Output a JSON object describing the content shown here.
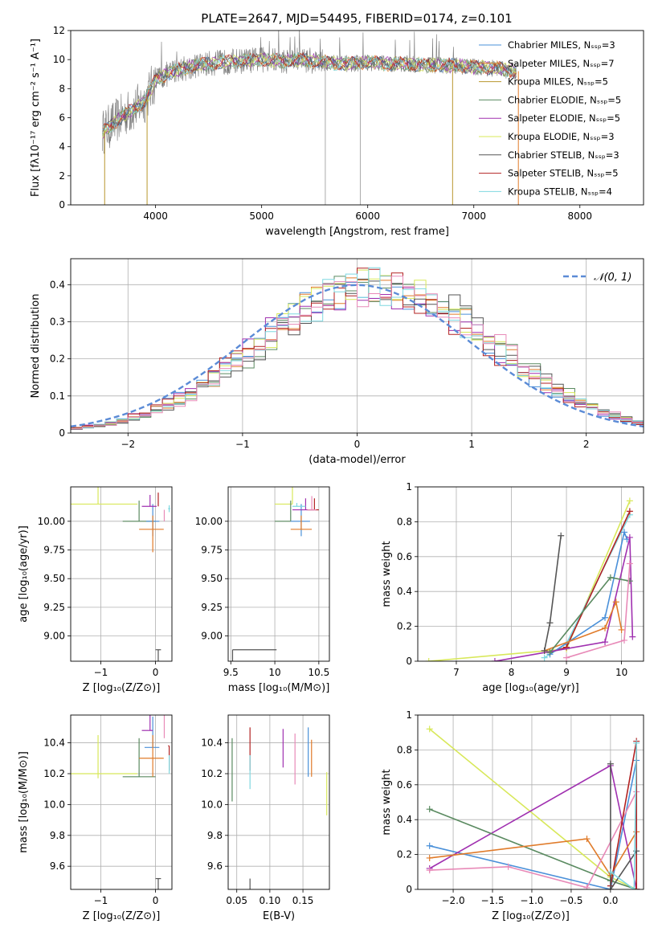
{
  "figure": {
    "title": "PLATE=2647, MJD=54495, FIBERID=0174, z=0.101"
  },
  "chart_data": [
    {
      "id": "spectrum",
      "type": "line",
      "xlabel": "wavelength [Angstrom, rest frame]",
      "ylabel": "Flux [fλ10⁻¹⁷ erg cm⁻² s⁻¹ A⁻¹]",
      "xlim": [
        3200,
        8600
      ],
      "ylim": [
        0,
        12
      ],
      "xticks": [
        4000,
        5000,
        6000,
        7000,
        8000
      ],
      "yticks": [
        0,
        2,
        4,
        6,
        8,
        10,
        12
      ],
      "grid": false,
      "legend_position": "top-right",
      "data_range": [
        3500,
        7400
      ],
      "series": [
        {
          "name": "Chabrier MILES, Nₛₛₚ=3",
          "color": "#4a90d9"
        },
        {
          "name": "Salpeter MILES, Nₛₛₚ=7",
          "color": "#e07b2a"
        },
        {
          "name": "Kroupa MILES, Nₛₛₚ=5",
          "color": "#b8962e"
        },
        {
          "name": "Chabrier ELODIE, Nₛₛₚ=5",
          "color": "#5a8a60"
        },
        {
          "name": "Salpeter ELODIE, Nₛₛₚ=5",
          "color": "#a030b0"
        },
        {
          "name": "Kroupa ELODIE, Nₛₛₚ=3",
          "color": "#d8e85a"
        },
        {
          "name": "Chabrier STELIB, Nₛₛₚ=3",
          "color": "#555555"
        },
        {
          "name": "Salpeter STELIB, Nₛₛₚ=5",
          "color": "#b22222"
        },
        {
          "name": "Kroupa STELIB, Nₛₛₚ=4",
          "color": "#7fd8e0"
        }
      ],
      "continuum": {
        "x": [
          3500,
          3600,
          3700,
          3800,
          3900,
          4000,
          4200,
          4400,
          4600,
          4800,
          5000,
          5200,
          5400,
          5600,
          5800,
          6000,
          6200,
          6400,
          6600,
          6800,
          7000,
          7200,
          7400
        ],
        "y": [
          5.0,
          5.6,
          6.2,
          6.6,
          7.2,
          8.6,
          9.3,
          9.6,
          9.8,
          9.9,
          10.0,
          9.9,
          10.0,
          9.8,
          9.7,
          9.8,
          9.7,
          9.7,
          9.6,
          9.6,
          9.5,
          9.4,
          9.2
        ]
      },
      "spikes": [
        {
          "x": 3520,
          "color": "#b8962e"
        },
        {
          "x": 3920,
          "color": "#b8962e"
        },
        {
          "x": 5600,
          "color": "#aaaaaa"
        },
        {
          "x": 5930,
          "color": "#aaaaaa"
        },
        {
          "x": 6800,
          "color": "#b8962e"
        },
        {
          "x": 7420,
          "color": "#e07b2a"
        }
      ]
    },
    {
      "id": "residuals",
      "type": "histogram",
      "xlabel": "(data-model)/error",
      "ylabel": "Normed distribution",
      "xlim": [
        -2.5,
        2.5
      ],
      "ylim": [
        0,
        0.47
      ],
      "xticks": [
        -2,
        -1,
        0,
        1,
        2
      ],
      "yticks": [
        0.0,
        0.1,
        0.2,
        0.3,
        0.4
      ],
      "grid": true,
      "legend_position": "top-right",
      "legend_label": "𝒩(0, 1)",
      "bin_width": 0.1,
      "reference_color": "#5b8bd6",
      "series_colors": [
        "#4a90d9",
        "#e07b2a",
        "#5a8a60",
        "#a030b0",
        "#d8e85a",
        "#555555",
        "#b22222",
        "#7fd8e0",
        "#e88ab8"
      ]
    },
    {
      "id": "age-vs-Z",
      "type": "errorbar",
      "xlabel": "Z [log₁₀(Z/Z⊙)]",
      "ylabel": "age  [log₁₀(age/yr)]",
      "xlim": [
        -1.55,
        0.3
      ],
      "ylim": [
        8.78,
        10.3
      ],
      "xticks": [
        -1,
        0
      ],
      "yticks": [
        9.0,
        9.25,
        9.5,
        9.75,
        10.0
      ],
      "ytick_labels": [
        "9.00",
        "9.25",
        "9.50",
        "9.75",
        "10.00"
      ],
      "grid": true,
      "points": [
        {
          "x": -1.05,
          "y": 10.15,
          "xerr": [
            1.05,
            0.72
          ],
          "yerr": [
            0.45,
            0.0
          ],
          "color": "#d8e85a"
        },
        {
          "x": -0.3,
          "y": 10.0,
          "xerr": [
            0.3,
            0.3
          ],
          "yerr": [
            0.18,
            0.0
          ],
          "color": "#5a8a60"
        },
        {
          "x": -0.05,
          "y": 10.0,
          "xerr": [
            0.12,
            0.12
          ],
          "yerr": [
            0.15,
            0.13
          ],
          "color": "#4a90d9"
        },
        {
          "x": -0.05,
          "y": 9.93,
          "xerr": [
            0.25,
            0.2
          ],
          "yerr": [
            0.12,
            0.2
          ],
          "color": "#e07b2a"
        },
        {
          "x": -0.1,
          "y": 10.13,
          "xerr": [
            0.15,
            0.12
          ],
          "yerr": [
            0.1,
            0.0
          ],
          "color": "#a030b0"
        },
        {
          "x": 0.05,
          "y": 10.13,
          "xerr": [
            0.0,
            0.0
          ],
          "yerr": [
            0.12,
            0.0
          ],
          "color": "#b22222"
        },
        {
          "x": 0.16,
          "y": 10.0,
          "xerr": [
            0.0,
            0.0
          ],
          "yerr": [
            0.1,
            0.0
          ],
          "color": "#e88ab8"
        },
        {
          "x": 0.25,
          "y": 10.11,
          "xerr": [
            0.02,
            0.02
          ],
          "yerr": [
            0.03,
            0.03
          ],
          "color": "#7fd8e0"
        },
        {
          "x": 0.05,
          "y": 8.88,
          "xerr": [
            0.05,
            0.05
          ],
          "yerr": [
            0.0,
            0.88
          ],
          "color": "#555555"
        }
      ]
    },
    {
      "id": "age-vs-mass",
      "type": "errorbar",
      "xlabel": "mass [log₁₀(M/M⊙)]",
      "ylabel": "",
      "xlim": [
        9.47,
        10.62
      ],
      "ylim": [
        8.78,
        10.3
      ],
      "xticks": [
        9.5,
        10.0,
        10.5
      ],
      "yticks": [
        9.0,
        9.25,
        9.5,
        9.75,
        10.0
      ],
      "ytick_labels": [
        "9.00",
        "9.25",
        "9.50",
        "9.75",
        "10.00"
      ],
      "grid": true,
      "points": [
        {
          "x": 10.2,
          "y": 10.15,
          "xerr": [
            0.2,
            0.0
          ],
          "yerr": [
            0.45,
            0.0
          ],
          "color": "#d8e85a"
        },
        {
          "x": 10.18,
          "y": 10.0,
          "xerr": [
            0.18,
            0.0
          ],
          "yerr": [
            0.18,
            0.0
          ],
          "color": "#5a8a60"
        },
        {
          "x": 10.3,
          "y": 10.0,
          "xerr": [
            0.12,
            0.1
          ],
          "yerr": [
            0.15,
            0.13
          ],
          "color": "#4a90d9"
        },
        {
          "x": 10.3,
          "y": 9.93,
          "xerr": [
            0.12,
            0.12
          ],
          "yerr": [
            0.12,
            0.0
          ],
          "color": "#e07b2a"
        },
        {
          "x": 10.35,
          "y": 10.1,
          "xerr": [
            0.15,
            0.12
          ],
          "yerr": [
            0.1,
            0.0
          ],
          "color": "#a030b0"
        },
        {
          "x": 10.45,
          "y": 10.1,
          "xerr": [
            0.08,
            0.05
          ],
          "yerr": [
            0.1,
            0.0
          ],
          "color": "#b22222"
        },
        {
          "x": 10.42,
          "y": 10.1,
          "xerr": [
            0.05,
            0.05
          ],
          "yerr": [
            0.12,
            0.0
          ],
          "color": "#e88ab8"
        },
        {
          "x": 10.25,
          "y": 10.13,
          "xerr": [
            0.05,
            0.1
          ],
          "yerr": [
            0.03,
            0.0
          ],
          "color": "#7fd8e0"
        },
        {
          "x": 9.52,
          "y": 8.88,
          "xerr": [
            0.0,
            0.5
          ],
          "yerr": [
            0.0,
            0.88
          ],
          "color": "#555555"
        }
      ]
    },
    {
      "id": "weight-vs-age",
      "type": "line",
      "xlabel": "age  [log₁₀(age/yr)]",
      "ylabel": "mass weight",
      "xlim": [
        6.3,
        10.4
      ],
      "ylim": [
        0,
        1
      ],
      "xticks": [
        7,
        8,
        9,
        10
      ],
      "yticks": [
        0.0,
        0.2,
        0.4,
        0.6,
        0.8,
        1.0
      ],
      "grid": true,
      "series": [
        {
          "color": "#d8e85a",
          "x": [
            6.5,
            9.0,
            10.15
          ],
          "y": [
            0.0,
            0.07,
            0.92
          ]
        },
        {
          "color": "#7fd8e0",
          "x": [
            8.6,
            9.0,
            10.15
          ],
          "y": [
            0.02,
            0.1,
            0.84
          ]
        },
        {
          "color": "#b22222",
          "x": [
            8.7,
            9.0,
            10.15
          ],
          "y": [
            0.05,
            0.08,
            0.86
          ]
        },
        {
          "color": "#4a90d9",
          "x": [
            8.7,
            9.7,
            10.05,
            10.1
          ],
          "y": [
            0.04,
            0.25,
            0.74,
            0.7
          ]
        },
        {
          "color": "#a030b0",
          "x": [
            7.7,
            9.7,
            10.15,
            10.2
          ],
          "y": [
            0.0,
            0.11,
            0.71,
            0.14
          ]
        },
        {
          "color": "#e07b2a",
          "x": [
            8.6,
            9.7,
            9.9,
            10.0
          ],
          "y": [
            0.06,
            0.19,
            0.34,
            0.18
          ]
        },
        {
          "color": "#5a8a60",
          "x": [
            8.7,
            9.8,
            10.15
          ],
          "y": [
            0.05,
            0.48,
            0.46
          ]
        },
        {
          "color": "#555555",
          "x": [
            8.6,
            8.7,
            8.9
          ],
          "y": [
            0.06,
            0.22,
            0.72
          ]
        },
        {
          "color": "#e88ab8",
          "x": [
            9.0,
            10.05,
            10.15
          ],
          "y": [
            0.02,
            0.12,
            0.56
          ]
        }
      ]
    },
    {
      "id": "mass-vs-Z",
      "type": "errorbar",
      "xlabel": "Z [log₁₀(Z/Z⊙)]",
      "ylabel": "mass [log₁₀(M/M⊙)]",
      "xlim": [
        -1.55,
        0.3
      ],
      "ylim": [
        9.45,
        10.58
      ],
      "xticks": [
        -1,
        0
      ],
      "yticks": [
        9.6,
        9.8,
        10.0,
        10.2,
        10.4
      ],
      "ytick_labels": [
        "9.6",
        "9.8",
        "10.0",
        "10.2",
        "10.4"
      ],
      "grid": true,
      "points": [
        {
          "x": -1.05,
          "y": 10.2,
          "xerr": [
            1.05,
            0.72
          ],
          "yerr": [
            0.25,
            0.03
          ],
          "color": "#d8e85a"
        },
        {
          "x": -0.3,
          "y": 10.18,
          "xerr": [
            0.3,
            0.3
          ],
          "yerr": [
            0.25,
            0.0
          ],
          "color": "#5a8a60"
        },
        {
          "x": -0.05,
          "y": 10.37,
          "xerr": [
            0.15,
            0.12
          ],
          "yerr": [
            0.2,
            0.0
          ],
          "color": "#4a90d9"
        },
        {
          "x": -0.05,
          "y": 10.3,
          "xerr": [
            0.25,
            0.2
          ],
          "yerr": [
            0.15,
            0.12
          ],
          "color": "#e07b2a"
        },
        {
          "x": -0.1,
          "y": 10.48,
          "xerr": [
            0.15,
            0.05
          ],
          "yerr": [
            0.12,
            0.0
          ],
          "color": "#a030b0"
        },
        {
          "x": 0.25,
          "y": 10.38,
          "xerr": [
            0.02,
            0.0
          ],
          "yerr": [
            0.0,
            0.16
          ],
          "color": "#b22222"
        },
        {
          "x": 0.16,
          "y": 10.43,
          "xerr": [
            0.0,
            0.0
          ],
          "yerr": [
            0.2,
            0.0
          ],
          "color": "#e88ab8"
        },
        {
          "x": 0.25,
          "y": 10.2,
          "xerr": [
            0.0,
            0.0
          ],
          "yerr": [
            0.12,
            0.0
          ],
          "color": "#7fd8e0"
        },
        {
          "x": 0.05,
          "y": 9.52,
          "xerr": [
            0.05,
            0.05
          ],
          "yerr": [
            0.0,
            0.5
          ],
          "color": "#555555"
        }
      ]
    },
    {
      "id": "mass-vs-ebv",
      "type": "errorbar",
      "xlabel": "E(B-V)",
      "ylabel": "",
      "xlim": [
        0.037,
        0.19
      ],
      "ylim": [
        9.45,
        10.58
      ],
      "xticks": [
        0.05,
        0.1,
        0.15
      ],
      "xtick_labels": [
        "0.05",
        "0.10",
        "0.15"
      ],
      "yticks": [
        9.6,
        9.8,
        10.0,
        10.2,
        10.4
      ],
      "ytick_labels": [
        "9.6",
        "9.8",
        "10.0",
        "10.2",
        "10.4"
      ],
      "grid": true,
      "points": [
        {
          "x": 0.043,
          "y": 10.18,
          "xerr": [
            0,
            0
          ],
          "yerr": [
            0.25,
            0.16
          ],
          "color": "#5a8a60"
        },
        {
          "x": 0.07,
          "y": 10.38,
          "xerr": [
            0,
            0
          ],
          "yerr": [
            0.12,
            0.16
          ],
          "color": "#b22222"
        },
        {
          "x": 0.07,
          "y": 10.2,
          "xerr": [
            0,
            0
          ],
          "yerr": [
            0.12,
            0.1
          ],
          "color": "#7fd8e0"
        },
        {
          "x": 0.07,
          "y": 9.52,
          "xerr": [
            0,
            0
          ],
          "yerr": [
            0.0,
            0.5
          ],
          "color": "#555555"
        },
        {
          "x": 0.12,
          "y": 10.37,
          "xerr": [
            0,
            0
          ],
          "yerr": [
            0.12,
            0.13
          ],
          "color": "#a030b0"
        },
        {
          "x": 0.138,
          "y": 10.28,
          "xerr": [
            0,
            0
          ],
          "yerr": [
            0.18,
            0.15
          ],
          "color": "#e88ab8"
        },
        {
          "x": 0.158,
          "y": 10.3,
          "xerr": [
            0,
            0
          ],
          "yerr": [
            0.2,
            0.12
          ],
          "color": "#4a90d9"
        },
        {
          "x": 0.163,
          "y": 10.3,
          "xerr": [
            0,
            0
          ],
          "yerr": [
            0.12,
            0.12
          ],
          "color": "#e07b2a"
        },
        {
          "x": 0.186,
          "y": 10.08,
          "xerr": [
            0,
            0
          ],
          "yerr": [
            0.13,
            0.15
          ],
          "color": "#d8e85a"
        }
      ]
    },
    {
      "id": "weight-vs-Z",
      "type": "line",
      "xlabel": "Z [log₁₀(Z/Z⊙)]",
      "ylabel": "mass weight",
      "xlim": [
        -2.45,
        0.42
      ],
      "ylim": [
        0,
        1
      ],
      "xticks": [
        -2.0,
        -1.5,
        -1.0,
        -0.5,
        0.0
      ],
      "xtick_labels": [
        "−2.0",
        "−1.5",
        "−1.0",
        "−0.5",
        "0.0"
      ],
      "yticks": [
        0.0,
        0.2,
        0.4,
        0.6,
        0.8,
        1.0
      ],
      "grid": true,
      "series": [
        {
          "color": "#d8e85a",
          "x": [
            -2.3,
            0.0,
            0.33
          ],
          "y": [
            0.92,
            0.07,
            0.0
          ]
        },
        {
          "color": "#4a90d9",
          "x": [
            -2.3,
            0.0,
            0.33
          ],
          "y": [
            0.25,
            0.0,
            0.74
          ]
        },
        {
          "color": "#a030b0",
          "x": [
            -2.3,
            0.0,
            0.33
          ],
          "y": [
            0.12,
            0.71,
            0.0
          ]
        },
        {
          "color": "#5a8a60",
          "x": [
            -2.3,
            0.0,
            0.33
          ],
          "y": [
            0.46,
            0.05,
            0.0
          ]
        },
        {
          "color": "#e07b2a",
          "x": [
            -2.3,
            -0.3,
            0.0,
            0.33
          ],
          "y": [
            0.18,
            0.29,
            0.08,
            0.33
          ]
        },
        {
          "color": "#e88ab8",
          "x": [
            -2.3,
            -1.3,
            -0.3,
            0.33
          ],
          "y": [
            0.11,
            0.13,
            0.01,
            0.56
          ]
        },
        {
          "color": "#b22222",
          "x": [
            0.0,
            0.33,
            0.33
          ],
          "y": [
            0.02,
            0.85,
            0.0
          ]
        },
        {
          "color": "#555555",
          "x": [
            0.0,
            0.0,
            0.33
          ],
          "y": [
            0.72,
            0.0,
            0.22
          ]
        },
        {
          "color": "#7fd8e0",
          "x": [
            0.0,
            0.3,
            0.33
          ],
          "y": [
            0.1,
            0.0,
            0.84
          ]
        }
      ]
    }
  ]
}
